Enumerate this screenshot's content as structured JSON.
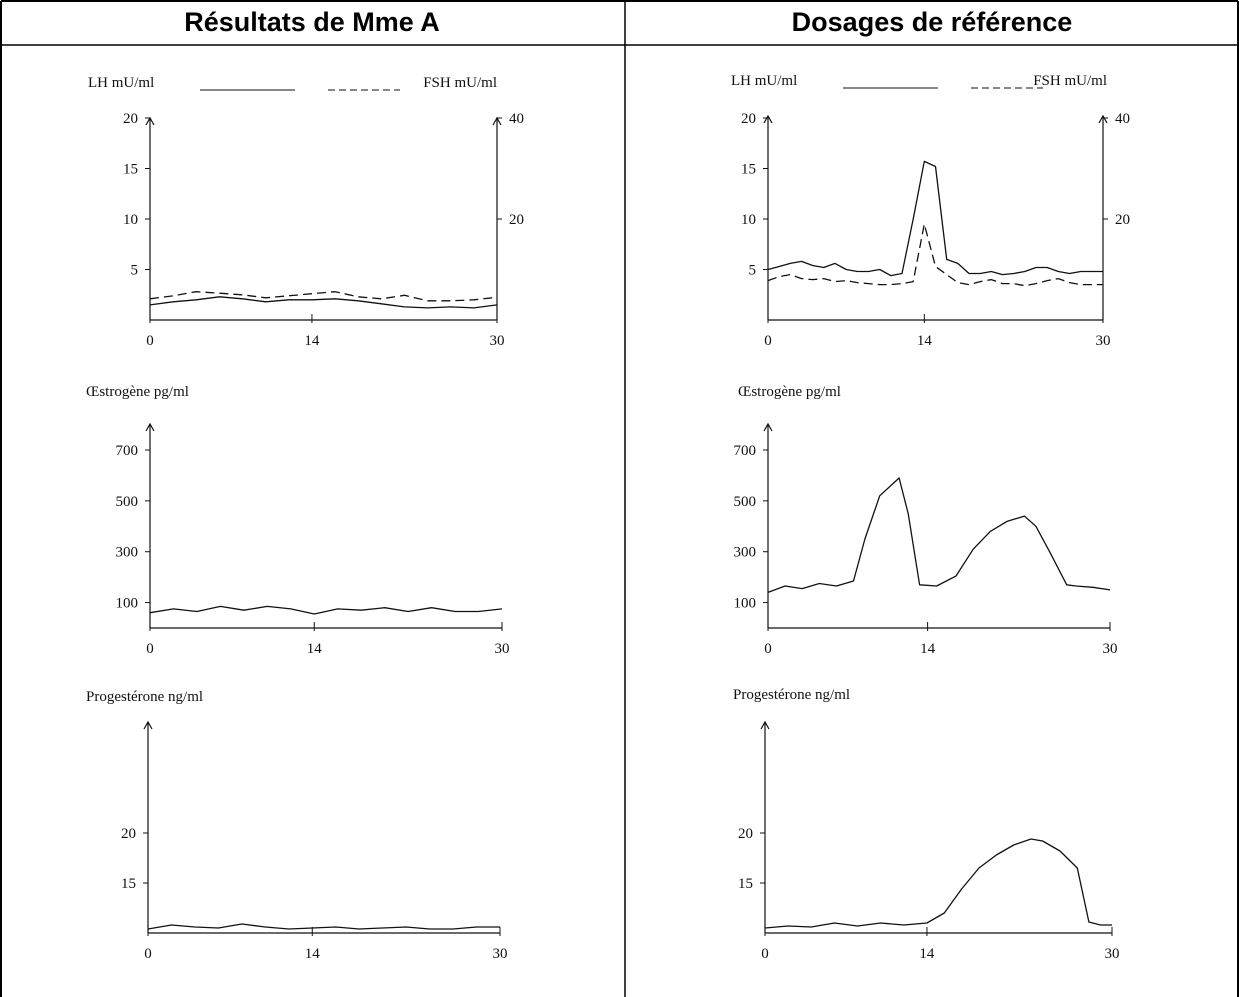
{
  "headers": {
    "left": "Résultats de Mme A",
    "right": "Dosages de référence"
  },
  "chart_data": [
    {
      "panel": "Résultats de Mme A",
      "type": "line",
      "ylabel": "LH mU/ml",
      "y2label": "FSH mU/ml",
      "xticks": [
        0,
        14,
        30
      ],
      "xlim": [
        0,
        30
      ],
      "ylim": [
        0,
        20
      ],
      "yticks": [
        5,
        10,
        15,
        20
      ],
      "y2lim": [
        0,
        40
      ],
      "y2ticks": [
        20,
        40
      ],
      "series": [
        {
          "name": "LH mU/ml",
          "style": "solid",
          "axis": "left",
          "x": [
            0,
            2,
            4,
            6,
            8,
            10,
            12,
            14,
            16,
            18,
            20,
            22,
            24,
            26,
            28,
            30
          ],
          "y": [
            1.5,
            1.8,
            2.0,
            2.3,
            2.1,
            1.8,
            2.0,
            2.0,
            2.1,
            1.9,
            1.6,
            1.3,
            1.2,
            1.3,
            1.2,
            1.5
          ]
        },
        {
          "name": "FSH mU/ml",
          "style": "dashed",
          "axis": "right",
          "x": [
            0,
            2,
            4,
            6,
            8,
            10,
            12,
            14,
            16,
            18,
            20,
            22,
            24,
            26,
            28,
            30
          ],
          "y": [
            4.2,
            4.8,
            5.6,
            5.3,
            5.0,
            4.4,
            4.8,
            5.2,
            5.6,
            4.6,
            4.2,
            4.9,
            3.8,
            3.8,
            4.0,
            4.5
          ]
        }
      ]
    },
    {
      "panel": "Dosages de référence",
      "type": "line",
      "ylabel": "LH mU/ml",
      "y2label": "FSH mU/ml",
      "xticks": [
        0,
        14,
        30
      ],
      "xlim": [
        0,
        30
      ],
      "ylim": [
        0,
        20
      ],
      "yticks": [
        5,
        10,
        15,
        20
      ],
      "y2lim": [
        0,
        40
      ],
      "y2ticks": [
        20,
        40
      ],
      "series": [
        {
          "name": "LH mU/ml",
          "style": "solid",
          "axis": "left",
          "x": [
            0,
            1,
            2,
            3,
            4,
            5,
            6,
            7,
            8,
            9,
            10,
            11,
            12,
            13,
            14,
            15,
            16,
            17,
            18,
            19,
            20,
            21,
            22,
            23,
            24,
            25,
            26,
            27,
            28,
            29,
            30
          ],
          "y": [
            5.0,
            5.3,
            5.6,
            5.8,
            5.4,
            5.2,
            5.6,
            5.0,
            4.8,
            4.8,
            5.0,
            4.4,
            4.6,
            10.0,
            15.7,
            15.2,
            6.0,
            5.6,
            4.6,
            4.6,
            4.8,
            4.5,
            4.6,
            4.8,
            5.2,
            5.2,
            4.8,
            4.6,
            4.8,
            4.8,
            4.8
          ]
        },
        {
          "name": "FSH mU/ml",
          "style": "dashed",
          "axis": "right",
          "x": [
            0,
            1,
            2,
            3,
            4,
            5,
            6,
            7,
            8,
            9,
            10,
            11,
            12,
            13,
            14,
            15,
            16,
            17,
            18,
            19,
            20,
            21,
            22,
            23,
            24,
            25,
            26,
            27,
            28,
            29,
            30
          ],
          "y": [
            7.8,
            8.6,
            9.0,
            8.2,
            8.0,
            8.2,
            7.6,
            7.8,
            7.4,
            7.2,
            7.0,
            7.0,
            7.2,
            7.6,
            19.0,
            10.6,
            9.0,
            7.4,
            7.0,
            7.6,
            8.0,
            7.2,
            7.2,
            6.8,
            7.2,
            7.8,
            8.2,
            7.4,
            7.0,
            7.0,
            7.0
          ]
        }
      ]
    },
    {
      "panel": "Résultats de Mme A",
      "type": "line",
      "ylabel": "Œstrogène pg/ml",
      "xticks": [
        0,
        14,
        30
      ],
      "xlim": [
        0,
        30
      ],
      "ylim": [
        0,
        800
      ],
      "yticks": [
        100,
        300,
        500,
        700
      ],
      "series": [
        {
          "name": "Œstrogène pg/ml",
          "style": "solid",
          "x": [
            0,
            2,
            4,
            6,
            8,
            10,
            12,
            14,
            16,
            18,
            20,
            22,
            24,
            26,
            28,
            30
          ],
          "y": [
            60,
            75,
            65,
            85,
            70,
            85,
            75,
            55,
            75,
            70,
            80,
            65,
            80,
            65,
            65,
            75
          ]
        }
      ]
    },
    {
      "panel": "Dosages de référence",
      "type": "line",
      "ylabel": "Œstrogène pg/ml",
      "xticks": [
        0,
        14,
        30
      ],
      "xlim": [
        0,
        30
      ],
      "ylim": [
        0,
        800
      ],
      "yticks": [
        100,
        300,
        500,
        700
      ],
      "series": [
        {
          "name": "Œstrogène pg/ml",
          "style": "solid",
          "x": [
            0,
            1.5,
            3,
            4.5,
            6,
            7.5,
            8.5,
            9.8,
            11.5,
            12.3,
            13.3,
            14.8,
            16.5,
            18,
            19.5,
            21,
            22.5,
            23.5,
            24.7,
            26.2,
            27,
            28.5,
            30
          ],
          "y": [
            140,
            165,
            155,
            175,
            165,
            185,
            350,
            520,
            590,
            450,
            170,
            165,
            205,
            310,
            380,
            420,
            440,
            400,
            300,
            170,
            165,
            160,
            150
          ]
        }
      ]
    },
    {
      "panel": "Résultats de Mme A",
      "type": "line",
      "ylabel": "Progestérone ng/ml",
      "xticks": [
        0,
        14,
        30
      ],
      "xlim": [
        0,
        30
      ],
      "ylim": [
        0,
        30
      ],
      "yticks": [
        15,
        20
      ],
      "series": [
        {
          "name": "Progestérone ng/ml",
          "style": "solid",
          "x": [
            0,
            2,
            4,
            6,
            8,
            10,
            12,
            14,
            16,
            18,
            20,
            22,
            24,
            26,
            28,
            30
          ],
          "y": [
            10.4,
            10.8,
            10.6,
            10.5,
            10.9,
            10.6,
            10.4,
            10.5,
            10.6,
            10.4,
            10.5,
            10.6,
            10.4,
            10.4,
            10.6,
            10.6
          ]
        }
      ]
    },
    {
      "panel": "Dosages de référence",
      "type": "line",
      "ylabel": "Progestérone ng/ml",
      "xticks": [
        0,
        14,
        30
      ],
      "xlim": [
        0,
        30
      ],
      "ylim": [
        0,
        30
      ],
      "yticks": [
        15,
        20
      ],
      "series": [
        {
          "name": "Progestérone ng/ml",
          "style": "solid",
          "x": [
            0,
            2,
            4,
            6,
            8,
            10,
            12,
            14,
            15.5,
            17,
            18.5,
            20,
            21.5,
            23,
            24,
            25.5,
            27,
            28,
            29,
            30
          ],
          "y": [
            10.5,
            10.7,
            10.6,
            11.0,
            10.7,
            11.0,
            10.8,
            11.0,
            12.0,
            14.4,
            16.5,
            17.8,
            18.8,
            19.4,
            19.2,
            18.2,
            16.5,
            11.1,
            10.8,
            10.8
          ]
        }
      ]
    }
  ]
}
